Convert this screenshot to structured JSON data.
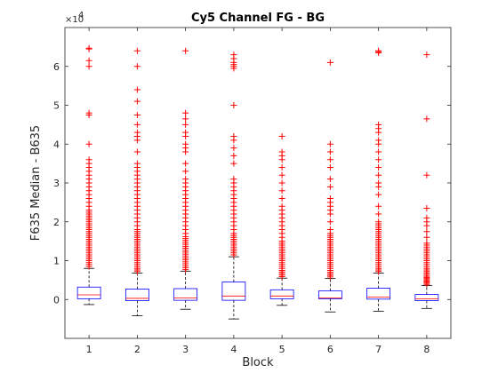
{
  "chart_data": {
    "type": "box",
    "title": "Cy5 Channel FG - BG",
    "xlabel": "Block",
    "ylabel": "F635 Median - B635",
    "y_multiplier_label": "×10",
    "y_multiplier_exponent": "4",
    "y_scale": 10000,
    "xlim": [
      0.5,
      8.5
    ],
    "ylim": [
      -10000,
      70000
    ],
    "categories": [
      "1",
      "2",
      "3",
      "4",
      "5",
      "6",
      "7",
      "8"
    ],
    "y_ticks": [
      0,
      10000,
      20000,
      30000,
      40000,
      50000,
      60000
    ],
    "y_tick_labels": [
      "0",
      "1",
      "2",
      "3",
      "4",
      "5",
      "6"
    ],
    "colors": {
      "box": "#0000ff",
      "median": "#ff0000",
      "whisker": "#000000",
      "outlier": "#ff0000"
    },
    "boxes": [
      {
        "q1": 200,
        "median": 1200,
        "q3": 3200,
        "whisker_low": -1300,
        "whisker_high": 8000,
        "outliers": [
          8500,
          9000,
          9500,
          10000,
          10500,
          11000,
          11500,
          12000,
          12500,
          13000,
          13500,
          14000,
          14500,
          15000,
          15500,
          16000,
          16500,
          17000,
          17500,
          18000,
          18500,
          19000,
          19500,
          20000,
          20500,
          21000,
          21500,
          22000,
          22500,
          23000,
          24000,
          25000,
          26000,
          27000,
          28000,
          29000,
          30000,
          31000,
          32000,
          33000,
          34000,
          35000,
          36000,
          40000,
          47500,
          48000,
          60000,
          61500,
          64500,
          64700
        ]
      },
      {
        "q1": -300,
        "median": 300,
        "q3": 2700,
        "whisker_low": -4200,
        "whisker_high": 6800,
        "outliers": [
          7200,
          7600,
          8000,
          8500,
          9000,
          9500,
          10000,
          10500,
          11000,
          11500,
          12000,
          12500,
          13000,
          13500,
          14000,
          14500,
          15000,
          15500,
          16000,
          16500,
          17000,
          17500,
          18000,
          19000,
          20000,
          21000,
          22000,
          23000,
          24000,
          25000,
          26000,
          27000,
          28000,
          29000,
          30000,
          31000,
          32000,
          33000,
          34000,
          35000,
          38000,
          41000,
          42000,
          43000,
          45000,
          47500,
          51000,
          54000,
          60000,
          64000
        ]
      },
      {
        "q1": -200,
        "median": 400,
        "q3": 2800,
        "whisker_low": -2500,
        "whisker_high": 7300,
        "outliers": [
          7700,
          8200,
          8700,
          9200,
          9700,
          10200,
          10700,
          11200,
          11700,
          12200,
          12700,
          13200,
          13700,
          14200,
          14700,
          15200,
          15700,
          16200,
          17000,
          18000,
          19000,
          20000,
          21000,
          22000,
          23000,
          24000,
          25000,
          26000,
          27000,
          28000,
          29000,
          30000,
          31000,
          33000,
          35000,
          38000,
          39000,
          40000,
          42000,
          43000,
          45000,
          46500,
          48000,
          64000
        ]
      },
      {
        "q1": -200,
        "median": 900,
        "q3": 4500,
        "whisker_low": -5000,
        "whisker_high": 11000,
        "outliers": [
          11500,
          12000,
          12500,
          13000,
          13500,
          14000,
          14500,
          15000,
          15500,
          16000,
          16500,
          17000,
          18000,
          19000,
          20000,
          21000,
          22000,
          23000,
          24000,
          25000,
          26000,
          27000,
          28000,
          29000,
          30000,
          31000,
          35000,
          37000,
          39000,
          41000,
          42000,
          50000,
          59500,
          60000,
          60500,
          61000,
          62000,
          63000
        ]
      },
      {
        "q1": 200,
        "median": 900,
        "q3": 2500,
        "whisker_low": -1500,
        "whisker_high": 5500,
        "outliers": [
          5900,
          6300,
          6700,
          7100,
          7500,
          8000,
          8500,
          9000,
          9500,
          10000,
          10500,
          11000,
          11500,
          12000,
          12500,
          13000,
          13500,
          14000,
          14500,
          15000,
          16000,
          17000,
          18000,
          19000,
          20000,
          21000,
          22000,
          23000,
          24000,
          26000,
          28000,
          30000,
          32000,
          34000,
          36000,
          37000,
          38000,
          42000
        ]
      },
      {
        "q1": 200,
        "median": 400,
        "q3": 2200,
        "whisker_low": -3200,
        "whisker_high": 5400,
        "outliers": [
          5800,
          6200,
          6600,
          7000,
          7500,
          8000,
          8500,
          9000,
          9500,
          10000,
          10500,
          11000,
          11500,
          12000,
          12500,
          13000,
          13500,
          14000,
          14500,
          15000,
          15500,
          16000,
          16500,
          17000,
          18000,
          20000,
          22000,
          23000,
          24000,
          25000,
          26000,
          29000,
          31000,
          34000,
          36000,
          38000,
          40000,
          61000
        ]
      },
      {
        "q1": 100,
        "median": 600,
        "q3": 2900,
        "whisker_low": -3000,
        "whisker_high": 6800,
        "outliers": [
          7200,
          7600,
          8000,
          8500,
          9000,
          9500,
          10000,
          10500,
          11000,
          11500,
          12000,
          12500,
          13000,
          13500,
          14000,
          14500,
          15000,
          15500,
          16000,
          16500,
          17000,
          17500,
          18000,
          18500,
          19000,
          19500,
          20000,
          22000,
          24000,
          27000,
          29000,
          30000,
          32000,
          34000,
          36000,
          38000,
          40000,
          41000,
          43000,
          44000,
          45000,
          63500,
          63800,
          64000
        ]
      },
      {
        "q1": -300,
        "median": 200,
        "q3": 1300,
        "whisker_low": -2300,
        "whisker_high": 3600,
        "outliers": [
          3900,
          4200,
          4500,
          4800,
          5100,
          5400,
          5700,
          6000,
          6400,
          6800,
          7200,
          7600,
          8000,
          8500,
          9000,
          9500,
          10000,
          10500,
          11000,
          11500,
          12000,
          12500,
          13000,
          13500,
          14000,
          14500,
          16000,
          17500,
          19000,
          20000,
          21000,
          23500,
          32000,
          46500,
          63000
        ]
      }
    ]
  }
}
